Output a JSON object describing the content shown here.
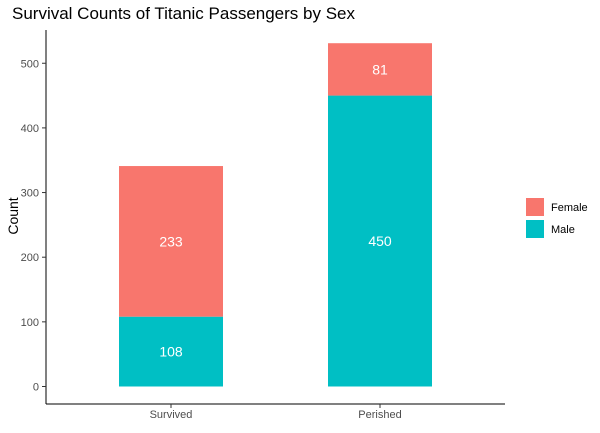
{
  "chart_data": {
    "type": "bar",
    "stacked": true,
    "title": "Survival Counts of Titanic Passengers by Sex",
    "xlabel": "",
    "ylabel": "Count",
    "categories": [
      "Survived",
      "Perished"
    ],
    "series": [
      {
        "name": "Male",
        "values": [
          108,
          450
        ],
        "color": "#00BFC4"
      },
      {
        "name": "Female",
        "values": [
          233,
          81
        ],
        "color": "#F8766D"
      }
    ],
    "ylim": [
      0,
      530
    ],
    "yticks": [
      0,
      100,
      200,
      300,
      400,
      500
    ],
    "legend": {
      "position": "right",
      "items": [
        {
          "label": "Female",
          "color": "#F8766D"
        },
        {
          "label": "Male",
          "color": "#00BFC4"
        }
      ]
    },
    "grid": false
  }
}
